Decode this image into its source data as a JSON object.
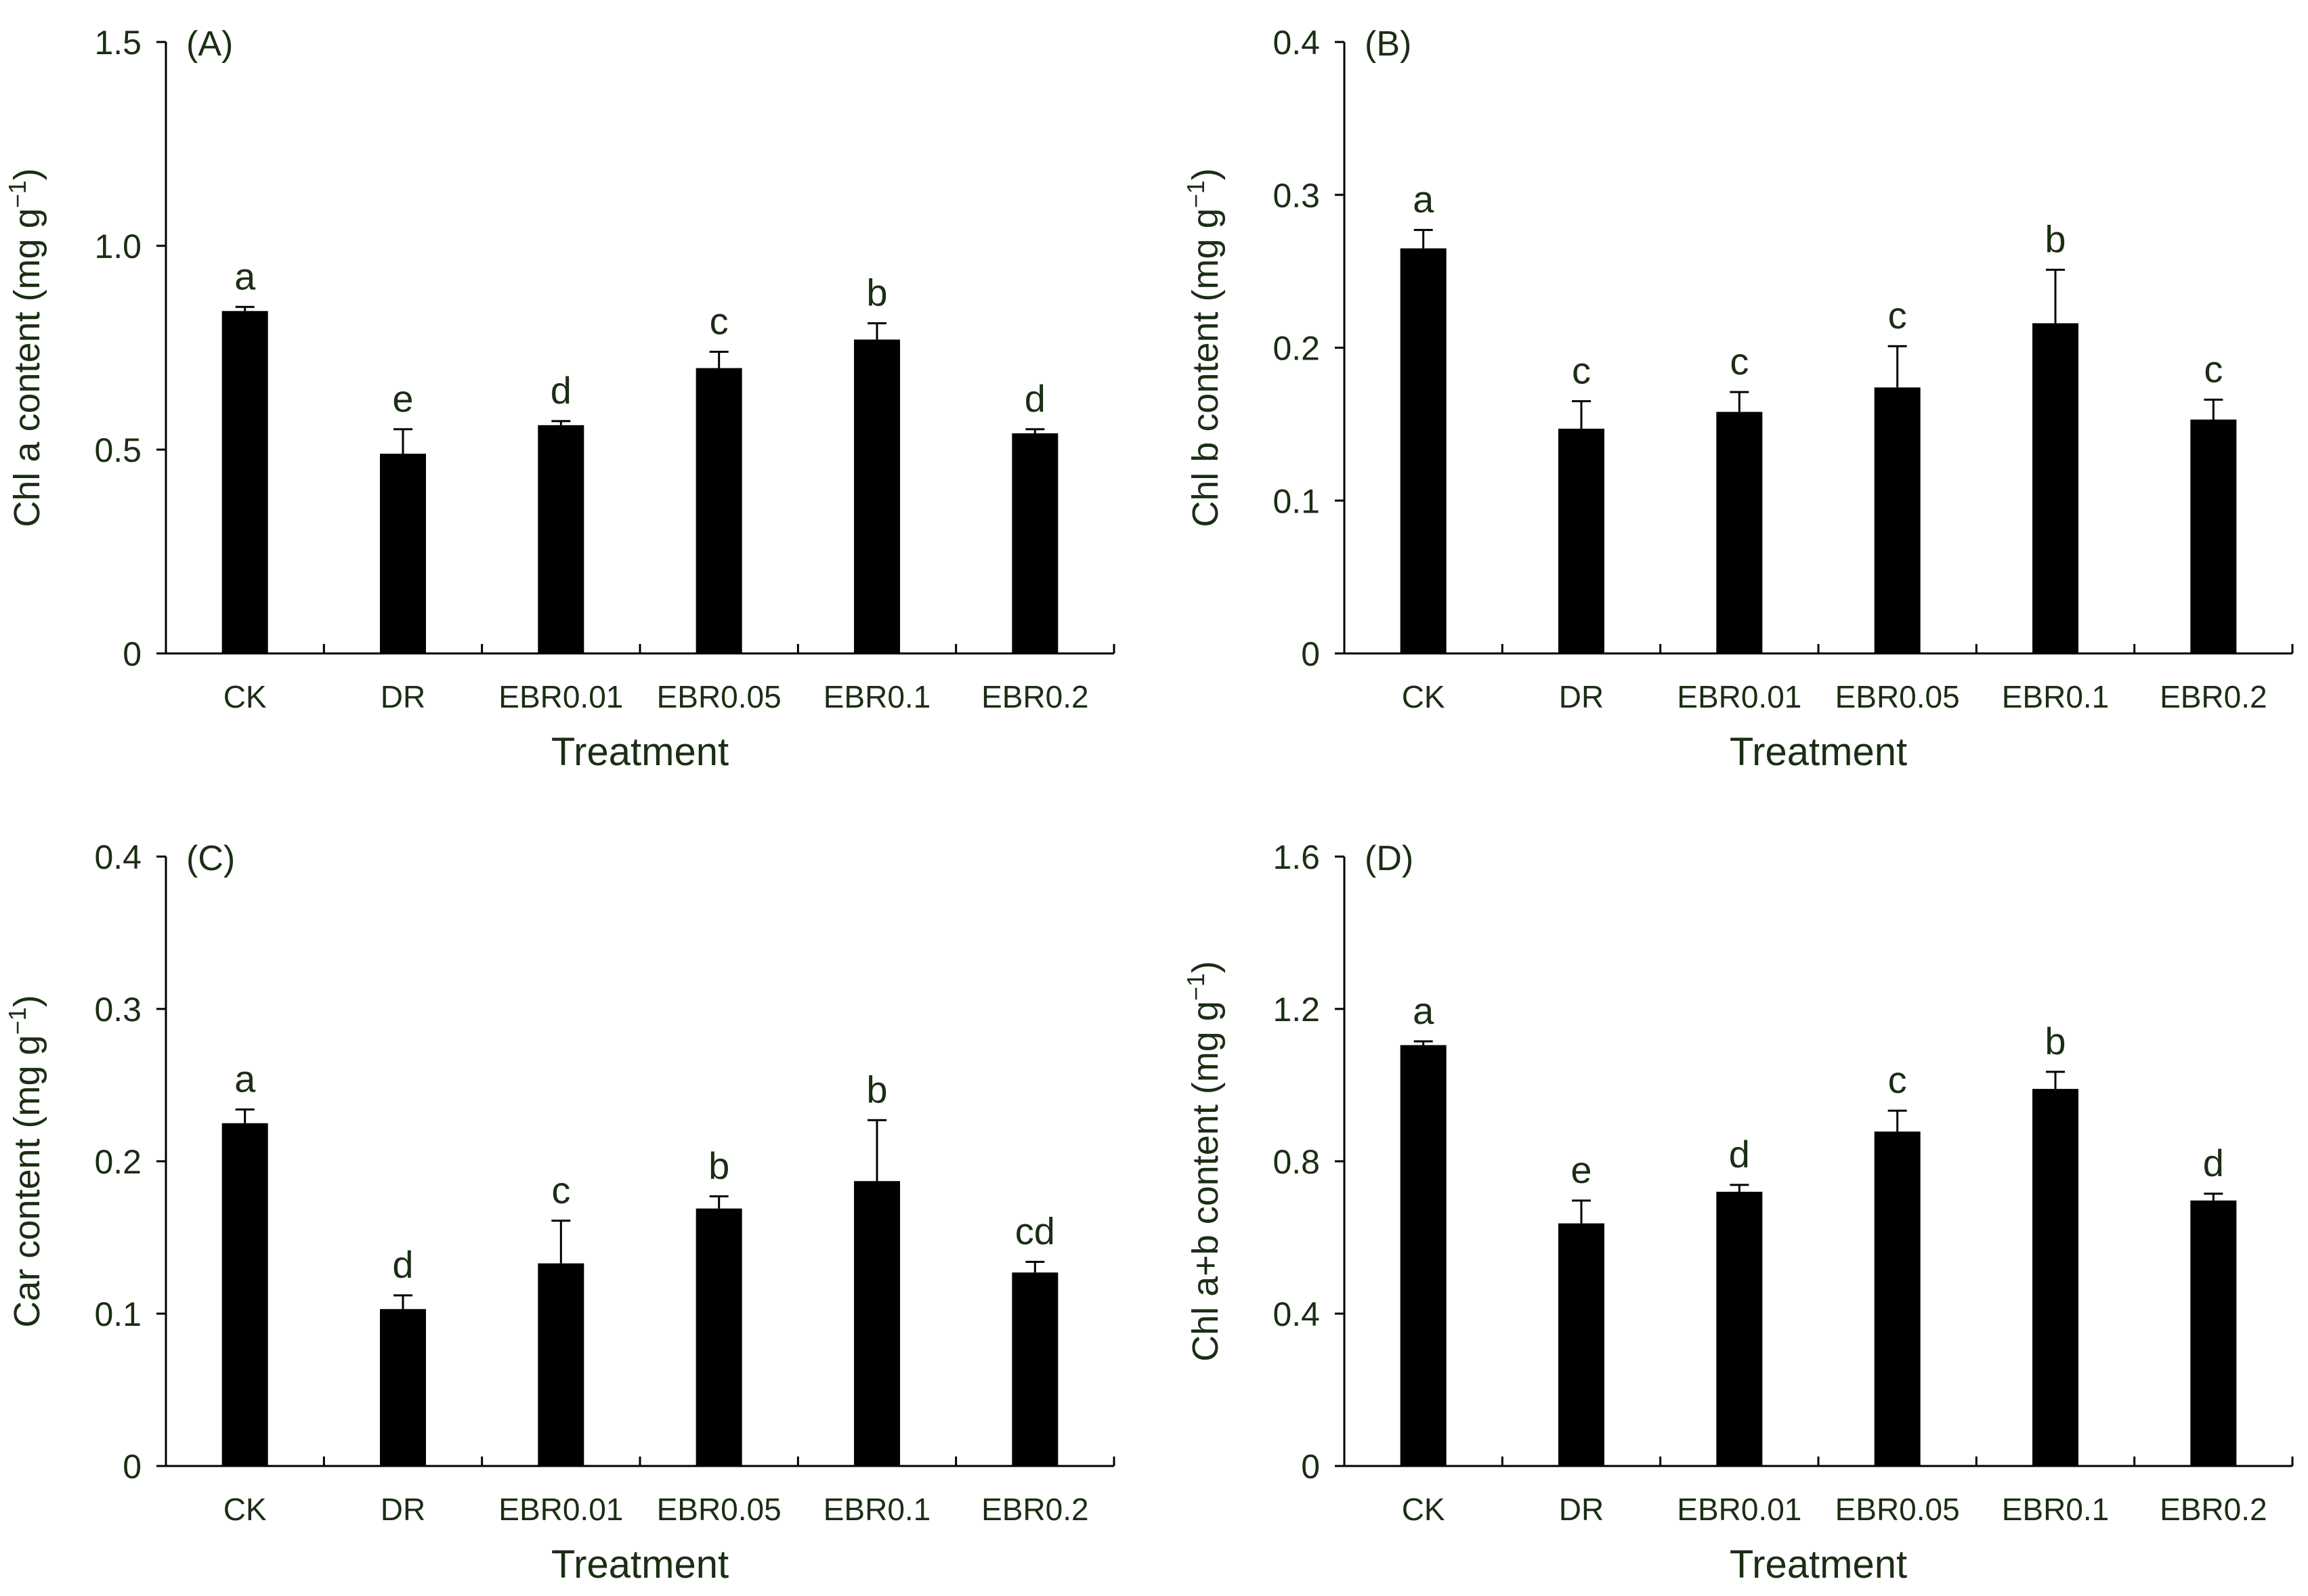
{
  "chart_data": [
    {
      "type": "bar",
      "panel_label": "(A)",
      "ylabel_main": "Chl a content (mg g",
      "ylabel_sup": "−1",
      "ylabel_close": ")",
      "xlabel": "Treatment",
      "categories": [
        "CK",
        "DR",
        "EBR0.01",
        "EBR0.05",
        "EBR0.1",
        "EBR0.2"
      ],
      "values": [
        0.84,
        0.49,
        0.56,
        0.7,
        0.77,
        0.54
      ],
      "errors": [
        0.01,
        0.06,
        0.01,
        0.04,
        0.04,
        0.01
      ],
      "letters": [
        "a",
        "e",
        "d",
        "c",
        "b",
        "d"
      ],
      "ylim": [
        0,
        1.5
      ],
      "yticks": [
        0,
        0.5,
        1.0,
        1.5
      ],
      "ytick_labels": [
        "0",
        "0.5",
        "1.0",
        "1.5"
      ]
    },
    {
      "type": "bar",
      "panel_label": "(B)",
      "ylabel_main": "Chl b content (mg g",
      "ylabel_sup": "−1",
      "ylabel_close": ")",
      "xlabel": "Treatment",
      "categories": [
        "CK",
        "DR",
        "EBR0.01",
        "EBR0.05",
        "EBR0.1",
        "EBR0.2"
      ],
      "values": [
        0.265,
        0.147,
        0.158,
        0.174,
        0.216,
        0.153
      ],
      "errors": [
        0.012,
        0.018,
        0.013,
        0.027,
        0.035,
        0.013
      ],
      "letters": [
        "a",
        "c",
        "c",
        "c",
        "b",
        "c"
      ],
      "ylim": [
        0,
        0.4
      ],
      "yticks": [
        0,
        0.1,
        0.2,
        0.3,
        0.4
      ],
      "ytick_labels": [
        "0",
        "0.1",
        "0.2",
        "0.3",
        "0.4"
      ]
    },
    {
      "type": "bar",
      "panel_label": "(C)",
      "ylabel_main": "Car content (mg g",
      "ylabel_sup": "−1",
      "ylabel_close": ")",
      "xlabel": "Treatment",
      "categories": [
        "CK",
        "DR",
        "EBR0.01",
        "EBR0.05",
        "EBR0.1",
        "EBR0.2"
      ],
      "values": [
        0.225,
        0.103,
        0.133,
        0.169,
        0.187,
        0.127
      ],
      "errors": [
        0.009,
        0.009,
        0.028,
        0.008,
        0.04,
        0.007
      ],
      "letters": [
        "a",
        "d",
        "c",
        "b",
        "b",
        "cd"
      ],
      "ylim": [
        0,
        0.4
      ],
      "yticks": [
        0,
        0.1,
        0.2,
        0.3,
        0.4
      ],
      "ytick_labels": [
        "0",
        "0.1",
        "0.2",
        "0.3",
        "0.4"
      ]
    },
    {
      "type": "bar",
      "panel_label": "(D)",
      "ylabel_main": "Chl a+b content (mg g",
      "ylabel_sup": "−1",
      "ylabel_close": ")",
      "xlabel": "Treatment",
      "categories": [
        "CK",
        "DR",
        "EBR0.01",
        "EBR0.05",
        "EBR0.1",
        "EBR0.2"
      ],
      "values": [
        1.105,
        0.637,
        0.72,
        0.878,
        0.99,
        0.697
      ],
      "errors": [
        0.01,
        0.06,
        0.018,
        0.055,
        0.045,
        0.018
      ],
      "letters": [
        "a",
        "e",
        "d",
        "c",
        "b",
        "d"
      ],
      "ylim": [
        0,
        1.6
      ],
      "yticks": [
        0,
        0.4,
        0.8,
        1.2,
        1.6
      ],
      "ytick_labels": [
        "0",
        "0.4",
        "0.8",
        "1.2",
        "1.6"
      ]
    }
  ]
}
